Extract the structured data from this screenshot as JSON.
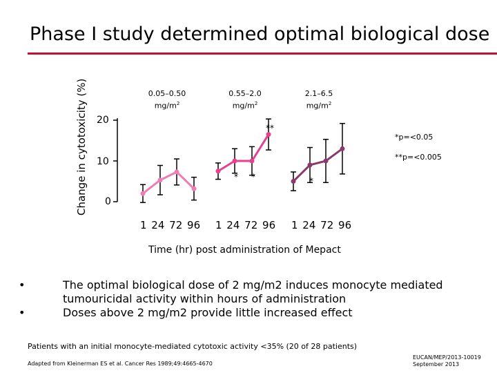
{
  "slide": {
    "title": "Phase I study determined optimal biological dose",
    "bullets": [
      "The optimal biological dose of 2 mg/m2 induces monocyte mediated tumouricidal activity within hours of administration",
      "Doses above 2 mg/m2 provide little increased effect"
    ],
    "footnote": "Patients with an initial monocyte-mediated cytotoxic activity <35% (20 of 28 patients)",
    "source": "Adapted from Kleinerman ES et al. Cancer Res 1989;49:4665-4670",
    "code_line1": "EUCAN/MEP/2013-10019",
    "code_line2": "September 2013"
  },
  "colors": {
    "accent": "#c8102e",
    "series_low": "#f07cb4",
    "series_mid": "#e8408e",
    "series_high": "#8a3a6a"
  },
  "chart_data": {
    "type": "line",
    "ylabel": "Change in cytotoxicity (%)",
    "xlabel": "Time (hr) post administration of Mepact",
    "yticks": [
      "20",
      "10",
      "0"
    ],
    "ylim": [
      0,
      22
    ],
    "categories": [
      "1",
      "24",
      "72",
      "96"
    ],
    "xtick_text": "1  24 72 96",
    "series": [
      {
        "name": "0.05–0.50",
        "unit": "mg/m",
        "sup": "2",
        "values": [
          2,
          5.3,
          7.3,
          3.2
        ],
        "err": [
          2.2,
          3.6,
          3.2,
          2.8
        ],
        "marks": [
          "",
          "",
          "",
          ""
        ]
      },
      {
        "name": "0.55–2.0",
        "unit": "mg/m",
        "sup": "2",
        "values": [
          7.5,
          10,
          10,
          16.5
        ],
        "err": [
          2,
          3,
          3.5,
          3.8
        ],
        "marks": [
          "",
          "*",
          "*",
          "**"
        ]
      },
      {
        "name": "2.1–6.5",
        "unit": "mg/m",
        "sup": "2",
        "values": [
          5,
          9,
          10,
          13
        ],
        "err": [
          2.3,
          4.3,
          5.3,
          6.2
        ],
        "marks": [
          "",
          "*",
          "",
          ""
        ]
      }
    ],
    "legend": [
      "*p=<0.05",
      "**p=<0.005"
    ]
  }
}
